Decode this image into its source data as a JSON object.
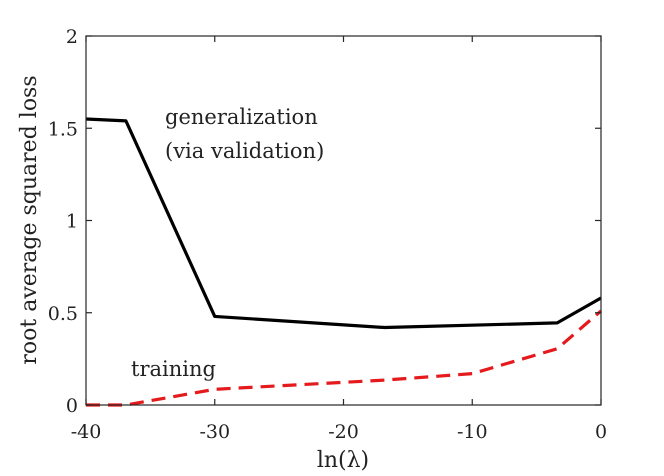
{
  "chart_data": {
    "type": "line",
    "title": "",
    "xlabel": "ln(λ)",
    "ylabel": "root average squared loss",
    "xlim": [
      -40,
      0
    ],
    "ylim": [
      0,
      2
    ],
    "xticks": [
      -40,
      -30,
      -20,
      -10,
      0
    ],
    "yticks": [
      0,
      0.5,
      1,
      1.5,
      2
    ],
    "xtick_labels": [
      "-40",
      "-30",
      "-20",
      "-10",
      "0"
    ],
    "ytick_labels": [
      "0",
      "0.5",
      "1",
      "1.5",
      "2"
    ],
    "grid": false,
    "series": [
      {
        "name": "generalization (via validation)",
        "color": "#000000",
        "style": "solid",
        "x": [
          -40,
          -36.9,
          -30,
          -16.8,
          -3.4,
          0
        ],
        "y": [
          1.55,
          1.54,
          0.48,
          0.42,
          0.445,
          0.58
        ]
      },
      {
        "name": "training",
        "color": "#e41a1c",
        "style": "dashed",
        "x": [
          -40,
          -36.9,
          -30,
          -16.8,
          -10,
          -3.4,
          0
        ],
        "y": [
          0,
          0,
          0.085,
          0.135,
          0.17,
          0.305,
          0.51
        ]
      }
    ],
    "annotations": {
      "generalization_line1": "generalization",
      "generalization_line2": "(via validation)",
      "training": "training"
    }
  }
}
